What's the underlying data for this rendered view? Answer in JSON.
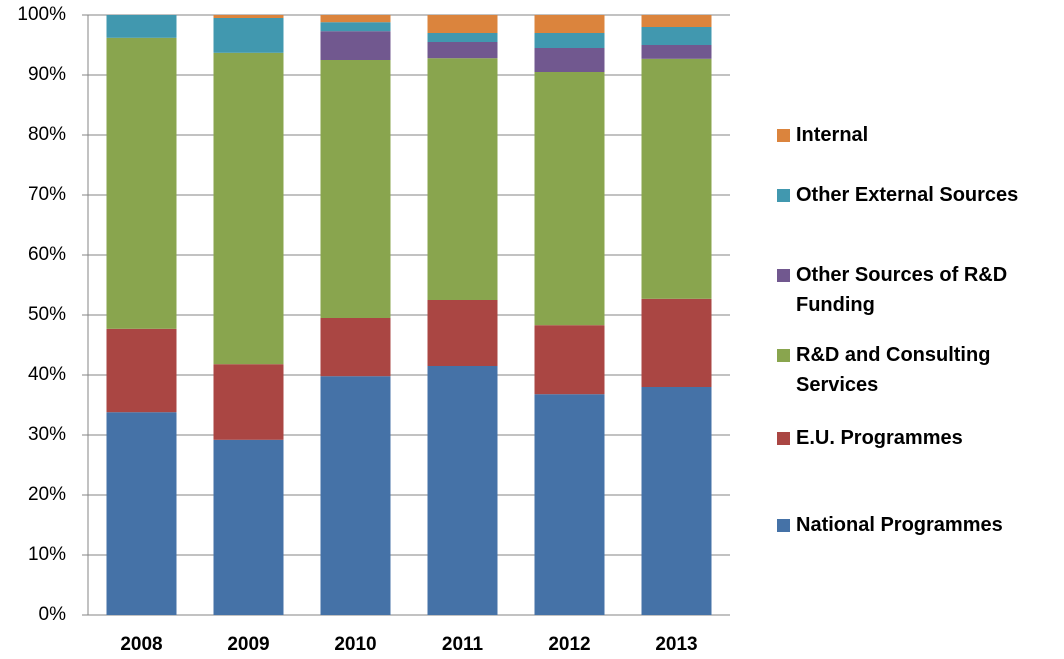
{
  "chart_data": {
    "type": "stacked_bar",
    "categories": [
      "2008",
      "2009",
      "2010",
      "2011",
      "2012",
      "2013"
    ],
    "series": [
      {
        "name": "National Programmes",
        "color": "#4572a7",
        "values": [
          33.8,
          29.2,
          39.8,
          41.5,
          36.8,
          38.0
        ]
      },
      {
        "name": "E.U. Programmes",
        "color": "#aa4643",
        "values": [
          13.9,
          12.6,
          9.7,
          11.0,
          11.5,
          14.7
        ]
      },
      {
        "name": "R&D and Consulting Services",
        "color": "#89a54e",
        "values": [
          48.5,
          51.9,
          43.0,
          40.3,
          42.2,
          40.0
        ]
      },
      {
        "name": "Other Sources of R&D Funding",
        "color": "#71588f",
        "values": [
          0,
          0,
          4.8,
          2.7,
          4.0,
          2.3
        ]
      },
      {
        "name": "Other External Sources",
        "color": "#4198af",
        "values": [
          3.8,
          5.8,
          1.5,
          1.5,
          2.5,
          3.0
        ]
      },
      {
        "name": "Internal",
        "color": "#db843d",
        "values": [
          0,
          0.5,
          1.2,
          3.0,
          3.0,
          2.0
        ]
      }
    ],
    "ylim": [
      0,
      100
    ],
    "yticks": [
      {
        "value": 0,
        "label": "0%"
      },
      {
        "value": 10,
        "label": "10%"
      },
      {
        "value": 20,
        "label": "20%"
      },
      {
        "value": 30,
        "label": "30%"
      },
      {
        "value": 40,
        "label": "40%"
      },
      {
        "value": 50,
        "label": "50%"
      },
      {
        "value": 60,
        "label": "60%"
      },
      {
        "value": 70,
        "label": "70%"
      },
      {
        "value": 80,
        "label": "80%"
      },
      {
        "value": 90,
        "label": "90%"
      },
      {
        "value": 100,
        "label": "100%"
      }
    ],
    "grid": true
  }
}
